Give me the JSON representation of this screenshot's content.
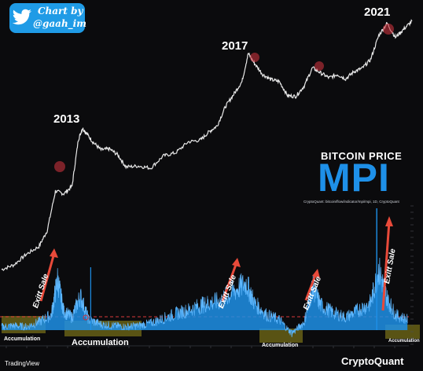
{
  "credit": {
    "line1": "Chart by",
    "line2": "@gaah_im"
  },
  "years": [
    "2013",
    "2017",
    "2021"
  ],
  "indicator": {
    "title": "BITCOIN PRICE",
    "name": "MPI",
    "subtitle": "CryptoQuant: bitcoin/flow/indicator/mpi/mpi, 1D, CryptoQuant"
  },
  "annotations": {
    "accumulation": [
      "Accumulation",
      "Accumulation",
      "Accumulation",
      "Accumulation"
    ],
    "exit": [
      "Exitt Sale",
      "Exitt Sale",
      "Exitt Sale",
      "Exitt Sale"
    ]
  },
  "footer": {
    "left": "TradingView",
    "right": "CryptoQuant"
  },
  "colors": {
    "background": "#0b0b0d",
    "price_line": "#e8e8e8",
    "mpi_fill": "#1e90e8",
    "accumulation_zone": "#9a8f1c",
    "exit_arrow": "#e84a3a",
    "peak_marker": "#c8323c",
    "threshold_line": "#d93a3a"
  },
  "chart_data": [
    {
      "type": "line",
      "series": [
        {
          "x": [
            2012.0,
            2012.3,
            2012.6,
            2012.9,
            2013.1,
            2013.3,
            2013.5,
            2013.7,
            2013.85,
            2013.95,
            2014.05,
            2014.2,
            2014.4,
            2014.6,
            2014.8,
            2015.0,
            2015.3,
            2015.6,
            2015.9,
            2016.2,
            2016.5,
            2016.8,
            2017.0,
            2017.2,
            2017.4,
            2017.6,
            2017.8,
            2017.95,
            2018.1,
            2018.3,
            2018.5,
            2018.7,
            2018.9,
            2019.1,
            2019.3,
            2019.5,
            2019.7,
            2019.9,
            2020.1,
            2020.3,
            2020.5,
            2020.7,
            2020.9,
            2021.1,
            2021.3,
            2021.5,
            2021.7,
            2021.9
          ],
          "values": [
            5,
            6,
            9,
            12,
            22,
            100,
            90,
            120,
            700,
            1100,
            900,
            650,
            480,
            500,
            400,
            250,
            260,
            240,
            380,
            430,
            650,
            700,
            950,
            1200,
            2500,
            4000,
            6500,
            19000,
            13000,
            8500,
            7000,
            6500,
            3800,
            3700,
            5500,
            11000,
            9000,
            7500,
            8500,
            7200,
            9500,
            10800,
            15000,
            38000,
            60000,
            35000,
            48000,
            65000
          ]
        }
      ],
      "peaks_marked": [
        2013.9,
        2017.95,
        2019.5,
        2021.3
      ]
    },
    {
      "type": "area",
      "series": [
        {
          "x": [
            2012.0,
            2012.3,
            2012.6,
            2012.9,
            2013.2,
            2013.35,
            2013.5,
            2013.7,
            2013.9,
            2014.1,
            2014.4,
            2014.7,
            2015.0,
            2015.3,
            2015.6,
            2015.9,
            2016.2,
            2016.5,
            2016.8,
            2017.0,
            2017.3,
            2017.6,
            2017.9,
            2018.1,
            2018.4,
            2018.7,
            2019.0,
            2019.3,
            2019.5,
            2019.7,
            2020.0,
            2020.3,
            2020.6,
            2020.9,
            2021.1,
            2021.3,
            2021.5,
            2021.8
          ],
          "values": [
            0.2,
            0.3,
            0.2,
            0.6,
            1.2,
            4.2,
            1.5,
            1.0,
            2.8,
            0.8,
            0.4,
            0.3,
            0.2,
            0.3,
            0.5,
            0.9,
            1.3,
            1.6,
            2.0,
            2.2,
            2.4,
            3.2,
            3.9,
            2.2,
            1.2,
            0.8,
            -0.4,
            0.6,
            3.6,
            2.0,
            1.4,
            1.0,
            1.6,
            2.2,
            5.0,
            2.6,
            1.2,
            0.8
          ]
        }
      ],
      "threshold": 2
    }
  ]
}
